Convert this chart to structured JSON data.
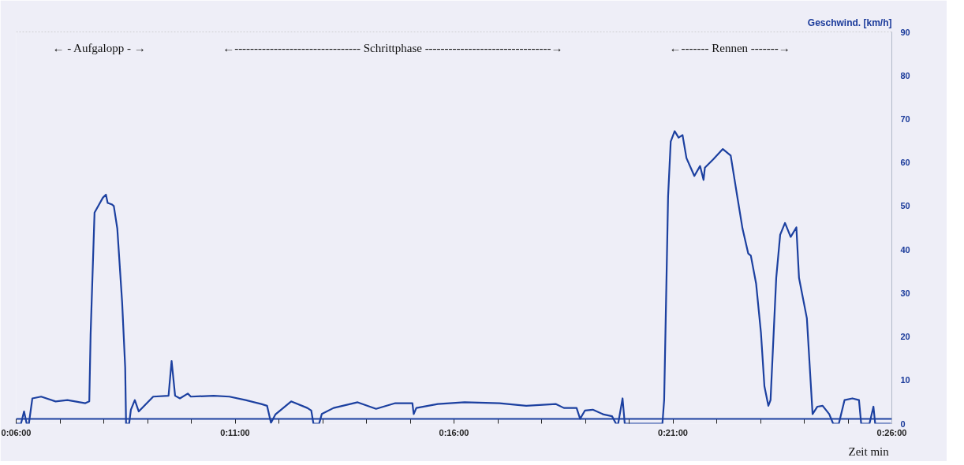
{
  "chart_data": {
    "type": "line",
    "xlabel": "Zeit  min",
    "ylabel": "Geschwind. [km/h]",
    "x": [
      6.0,
      6.11,
      6.18,
      6.24,
      6.29,
      6.37,
      6.57,
      6.9,
      7.17,
      7.58,
      7.67,
      7.7,
      7.79,
      7.98,
      8.05,
      8.09,
      8.18,
      8.23,
      8.31,
      8.42,
      8.49,
      8.51,
      8.58,
      8.62,
      8.71,
      8.8,
      9.13,
      9.48,
      9.55,
      9.63,
      9.74,
      9.92,
      9.99,
      10.51,
      10.87,
      11.24,
      11.6,
      11.73,
      11.82,
      11.92,
      12.28,
      12.65,
      12.74,
      12.79,
      12.92,
      12.98,
      13.25,
      13.8,
      14.22,
      14.66,
      15.05,
      15.08,
      15.14,
      15.63,
      16.24,
      17.04,
      17.65,
      18.33,
      18.51,
      18.8,
      18.88,
      18.99,
      19.17,
      19.42,
      19.61,
      19.7,
      19.75,
      19.85,
      19.9,
      20.76,
      20.8,
      20.89,
      20.95,
      21.04,
      21.13,
      21.22,
      21.31,
      21.49,
      21.62,
      21.7,
      21.73,
      21.92,
      22.14,
      22.32,
      22.47,
      22.59,
      22.72,
      22.78,
      22.9,
      23.01,
      23.09,
      23.18,
      23.23,
      23.36,
      23.45,
      23.56,
      23.69,
      23.82,
      23.88,
      24.06,
      24.19,
      24.3,
      24.42,
      24.57,
      24.66,
      24.79,
      24.92,
      25.1,
      25.25,
      25.3,
      25.49,
      25.58,
      25.62,
      25.98
    ],
    "series": [
      {
        "color": "#1c40a0",
        "values": [
          0,
          0,
          2.8,
          0,
          0,
          5.8,
          6.2,
          5.1,
          5.4,
          4.7,
          5.1,
          20.4,
          48.5,
          51.9,
          52.6,
          50.7,
          50.4,
          50.0,
          44.8,
          27.9,
          12.9,
          0,
          0,
          3.2,
          5.4,
          2.8,
          6.2,
          6.4,
          14.4,
          6.4,
          5.8,
          6.9,
          6.2,
          6.4,
          6.2,
          5.4,
          4.5,
          4.1,
          0.2,
          2.1,
          5.1,
          3.6,
          3.0,
          0,
          0,
          2.2,
          3.6,
          4.9,
          3.4,
          4.7,
          4.7,
          2.2,
          3.6,
          4.5,
          4.9,
          4.7,
          4.1,
          4.5,
          3.6,
          3.6,
          1.1,
          3.0,
          3.2,
          2.1,
          1.7,
          0,
          0,
          5.8,
          0,
          0,
          5.4,
          52.2,
          64.8,
          67.2,
          65.7,
          66.3,
          61.0,
          56.9,
          59.2,
          56.0,
          58.8,
          60.7,
          63.1,
          61.6,
          52.2,
          44.8,
          39.1,
          38.6,
          32.2,
          21.0,
          8.6,
          4.1,
          5.4,
          33.5,
          43.4,
          46.1,
          42.9,
          45.1,
          33.5,
          24.2,
          2.2,
          3.9,
          4.1,
          2.2,
          0,
          0,
          5.4,
          5.8,
          5.4,
          0,
          0,
          3.9,
          0,
          0
        ]
      }
    ],
    "xlim": [
      6,
      26
    ],
    "xticks": [
      {
        "value": 6,
        "label": "0:06:00"
      },
      {
        "value": 7,
        "label": null
      },
      {
        "value": 8,
        "label": null
      },
      {
        "value": 9,
        "label": null
      },
      {
        "value": 10,
        "label": null
      },
      {
        "value": 11,
        "label": "0:11:00"
      },
      {
        "value": 12,
        "label": null
      },
      {
        "value": 13,
        "label": null
      },
      {
        "value": 14,
        "label": null
      },
      {
        "value": 15,
        "label": null
      },
      {
        "value": 16,
        "label": "0:16:00"
      },
      {
        "value": 17,
        "label": null
      },
      {
        "value": 18,
        "label": null
      },
      {
        "value": 19,
        "label": null
      },
      {
        "value": 20,
        "label": null
      },
      {
        "value": 21,
        "label": "0:21:00"
      },
      {
        "value": 22,
        "label": null
      },
      {
        "value": 23,
        "label": null
      },
      {
        "value": 24,
        "label": null
      },
      {
        "value": 25,
        "label": null
      },
      {
        "value": 26,
        "label": "0:26:00"
      }
    ],
    "ylim": [
      0,
      90
    ],
    "yticks": [
      0,
      10,
      20,
      30,
      40,
      50,
      60,
      70,
      80,
      90
    ],
    "ref_lines": [
      {
        "axis": "y",
        "value": 1.1,
        "color": "#1c40a0"
      }
    ],
    "annotations": [
      "← - Aufgalopp - →",
      "←-------------------------------- Schrittphase --------------------------------→",
      "←------- Rennen -------→"
    ],
    "grid": false
  }
}
